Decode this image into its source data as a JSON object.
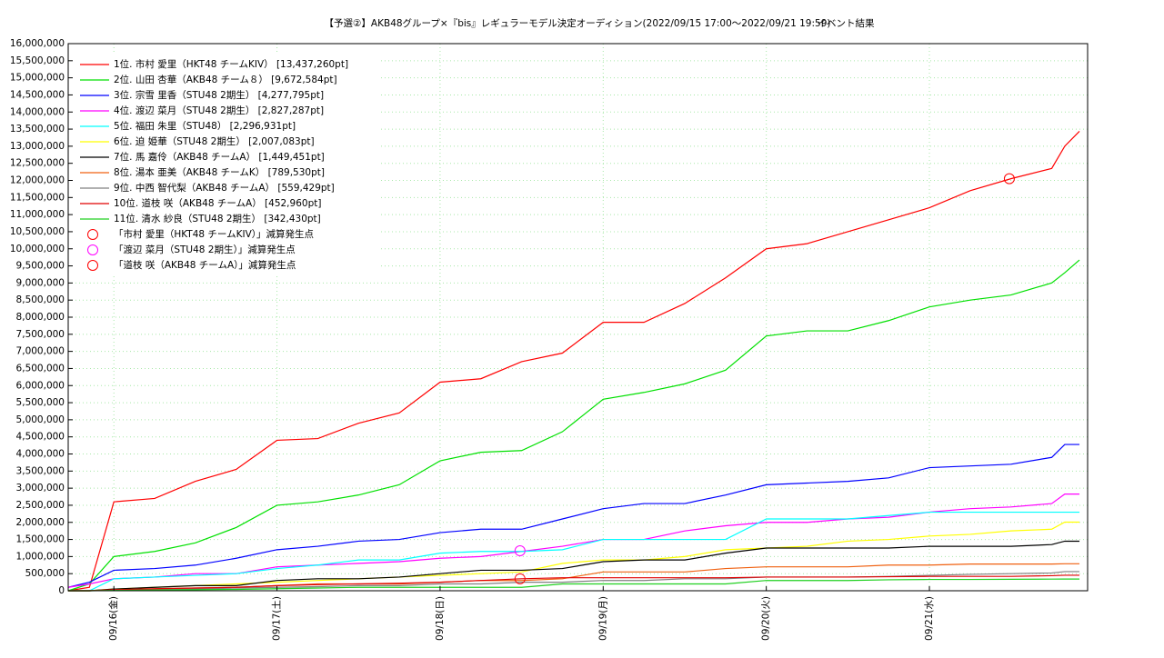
{
  "chart_data": {
    "type": "line",
    "title": "【予選②】AKB48グループ×『bis』レギュラーモデル決定オーディション(2022/09/15 17:00～2022/09/21 19:59)",
    "subtitle": "イベント結果",
    "xlim": [
      15.72,
      21.97
    ],
    "xticks": [
      {
        "value": 16,
        "label": "09/16(金)"
      },
      {
        "value": 17,
        "label": "09/17(土)"
      },
      {
        "value": 18,
        "label": "09/18(日)"
      },
      {
        "value": 19,
        "label": "09/19(月)"
      },
      {
        "value": 20,
        "label": "09/20(火)"
      },
      {
        "value": 21,
        "label": "09/21(水)"
      }
    ],
    "ylim": [
      0,
      16000000
    ],
    "yticks": [
      0,
      {
        "value": 500000,
        "label": "500,000"
      },
      {
        "value": 1000000,
        "label": "1,000,000"
      },
      {
        "value": 1500000,
        "label": "1,500,000"
      },
      {
        "value": 2000000,
        "label": "2,000,000"
      },
      {
        "value": 2500000,
        "label": "2,500,000"
      },
      {
        "value": 3000000,
        "label": "3,000,000"
      },
      {
        "value": 3500000,
        "label": "3,500,000"
      },
      {
        "value": 4000000,
        "label": "4,000,000"
      },
      {
        "value": 4500000,
        "label": "4,500,000"
      },
      {
        "value": 5000000,
        "label": "5,000,000"
      },
      {
        "value": 5500000,
        "label": "5,500,000"
      },
      {
        "value": 6000000,
        "label": "6,000,000"
      },
      {
        "value": 6500000,
        "label": "6,500,000"
      },
      {
        "value": 7000000,
        "label": "7,000,000"
      },
      {
        "value": 7500000,
        "label": "7,500,000"
      },
      {
        "value": 8000000,
        "label": "8,000,000"
      },
      {
        "value": 8500000,
        "label": "8,500,000"
      },
      {
        "value": 9000000,
        "label": "9,000,000"
      },
      {
        "value": 9500000,
        "label": "9,500,000"
      },
      {
        "value": 10000000,
        "label": "10,000,000"
      },
      {
        "value": 10500000,
        "label": "10,500,000"
      },
      {
        "value": 11000000,
        "label": "11,000,000"
      },
      {
        "value": 11500000,
        "label": "11,500,000"
      },
      {
        "value": 12000000,
        "label": "12,000,000"
      },
      {
        "value": 12500000,
        "label": "12,500,000"
      },
      {
        "value": 13000000,
        "label": "13,000,000"
      },
      {
        "value": 13500000,
        "label": "13,500,000"
      },
      {
        "value": 14000000,
        "label": "14,000,000"
      },
      {
        "value": 14500000,
        "label": "14,500,000"
      },
      {
        "value": 15000000,
        "label": "15,000,000"
      },
      {
        "value": 15500000,
        "label": "15,500,000"
      },
      {
        "value": 16000000,
        "label": "16,000,000"
      }
    ],
    "grid": true,
    "legend": "upper left",
    "x": [
      15.72,
      15.85,
      16.0,
      16.25,
      16.5,
      16.75,
      17.0,
      17.25,
      17.5,
      17.75,
      18.0,
      18.25,
      18.5,
      18.75,
      19.0,
      19.25,
      19.5,
      19.75,
      20.0,
      20.25,
      20.5,
      20.75,
      21.0,
      21.25,
      21.5,
      21.75,
      21.83,
      21.92
    ],
    "series": [
      {
        "name": "1位. 市村 愛里（HKT48 チームKIV） [13,437,260pt]",
        "color": "#ff0000",
        "values": [
          0,
          100000,
          2600000,
          2700000,
          3200000,
          3550000,
          4400000,
          4450000,
          4900000,
          5200000,
          6100000,
          6200000,
          6700000,
          6950000,
          7850000,
          7850000,
          8400000,
          9150000,
          10000000,
          10150000,
          10500000,
          10850000,
          11200000,
          11700000,
          12050000,
          12350000,
          13000000,
          13437260
        ]
      },
      {
        "name": "2位. 山田 杏華（AKB48 チーム８） [9,672,584pt]",
        "color": "#00e000",
        "values": [
          0,
          200000,
          1000000,
          1150000,
          1400000,
          1850000,
          2500000,
          2600000,
          2800000,
          3100000,
          3800000,
          4050000,
          4100000,
          4650000,
          5600000,
          5800000,
          6050000,
          6450000,
          7450000,
          7600000,
          7600000,
          7900000,
          8300000,
          8500000,
          8650000,
          9000000,
          9300000,
          9672584
        ]
      },
      {
        "name": "3位. 宗雪 里香（STU48 2期生） [4,277,795pt]",
        "color": "#0000ff",
        "values": [
          100000,
          250000,
          600000,
          650000,
          750000,
          950000,
          1200000,
          1300000,
          1450000,
          1500000,
          1700000,
          1800000,
          1800000,
          2100000,
          2400000,
          2550000,
          2550000,
          2800000,
          3100000,
          3150000,
          3200000,
          3300000,
          3600000,
          3650000,
          3700000,
          3900000,
          4277795,
          4277795
        ]
      },
      {
        "name": "4位. 渡辺 菜月（STU48 2期生） [2,827,287pt]",
        "color": "#ff00ff",
        "values": [
          100000,
          200000,
          350000,
          400000,
          500000,
          500000,
          700000,
          750000,
          800000,
          850000,
          950000,
          1000000,
          1150000,
          1300000,
          1500000,
          1500000,
          1750000,
          1900000,
          2000000,
          2000000,
          2100000,
          2150000,
          2300000,
          2400000,
          2450000,
          2550000,
          2827287,
          2827287
        ]
      },
      {
        "name": "5位. 福田 朱里（STU48） [2,296,931pt]",
        "color": "#00ffff",
        "values": [
          0,
          0,
          350000,
          400000,
          450000,
          500000,
          650000,
          750000,
          900000,
          900000,
          1100000,
          1150000,
          1150000,
          1200000,
          1500000,
          1500000,
          1500000,
          1500000,
          2100000,
          2100000,
          2100000,
          2200000,
          2296931,
          2296931,
          2296931,
          2296931,
          2296931,
          2296931
        ]
      },
      {
        "name": "6位. 迫 姫華（STU48 2期生） [2,007,083pt]",
        "color": "#ffff00",
        "values": [
          0,
          0,
          50000,
          100000,
          150000,
          200000,
          250000,
          300000,
          350000,
          400000,
          450000,
          500000,
          550000,
          800000,
          900000,
          900000,
          1000000,
          1200000,
          1250000,
          1300000,
          1450000,
          1500000,
          1600000,
          1650000,
          1750000,
          1800000,
          2007083,
          2007083
        ]
      },
      {
        "name": "7位. 馬 嘉伶（AKB48 チームA） [1,449,451pt]",
        "color": "#000000",
        "values": [
          0,
          0,
          50000,
          100000,
          150000,
          150000,
          300000,
          350000,
          350000,
          400000,
          500000,
          600000,
          600000,
          650000,
          850000,
          900000,
          900000,
          1100000,
          1250000,
          1250000,
          1250000,
          1250000,
          1300000,
          1300000,
          1300000,
          1350000,
          1449451,
          1449451
        ]
      },
      {
        "name": "8位. 湯本 亜美（AKB48 チームK） [789,530pt]",
        "color": "#f06010",
        "values": [
          0,
          0,
          30000,
          50000,
          80000,
          100000,
          150000,
          200000,
          200000,
          200000,
          250000,
          300000,
          300000,
          350000,
          550000,
          550000,
          550000,
          650000,
          700000,
          700000,
          700000,
          750000,
          750000,
          780000,
          780000,
          780000,
          789530,
          789530
        ]
      },
      {
        "name": "9位. 中西 智代梨（AKB48 チームA） [559,429pt]",
        "color": "#808080",
        "values": [
          0,
          0,
          20000,
          30000,
          50000,
          80000,
          100000,
          120000,
          150000,
          150000,
          200000,
          200000,
          250000,
          250000,
          300000,
          300000,
          350000,
          350000,
          400000,
          400000,
          400000,
          420000,
          450000,
          480000,
          500000,
          520000,
          559429,
          559429
        ]
      },
      {
        "name": "10位. 道枝 咲（AKB48 チームA） [452,960pt]",
        "color": "#e00000",
        "values": [
          0,
          0,
          30000,
          60000,
          80000,
          100000,
          150000,
          180000,
          200000,
          220000,
          250000,
          300000,
          350000,
          380000,
          380000,
          380000,
          380000,
          380000,
          400000,
          400000,
          400000,
          410000,
          420000,
          420000,
          420000,
          440000,
          452960,
          452960
        ]
      },
      {
        "name": "11位. 清水 紗良（STU48 2期生） [342,430pt]",
        "color": "#20d020",
        "values": [
          0,
          0,
          10000,
          20000,
          30000,
          40000,
          60000,
          80000,
          100000,
          100000,
          100000,
          100000,
          100000,
          200000,
          200000,
          200000,
          200000,
          200000,
          300000,
          300000,
          300000,
          320000,
          330000,
          330000,
          335000,
          340000,
          342430,
          342430
        ]
      }
    ],
    "markers": [
      {
        "name": "「市村 愛里（HKT48 チームKIV）」減算発生点",
        "color": "#ff0000",
        "x": [
          21.49
        ],
        "values": [
          12050000
        ]
      },
      {
        "name": "「渡辺 菜月（STU48 2期生）」減算発生点",
        "color": "#ff00ff",
        "x": [
          18.49
        ],
        "values": [
          1170000
        ]
      },
      {
        "name": "「道枝 咲（AKB48 チームA）」減算発生点",
        "color": "#ff0000",
        "x": [
          18.49
        ],
        "values": [
          350000
        ]
      }
    ]
  }
}
